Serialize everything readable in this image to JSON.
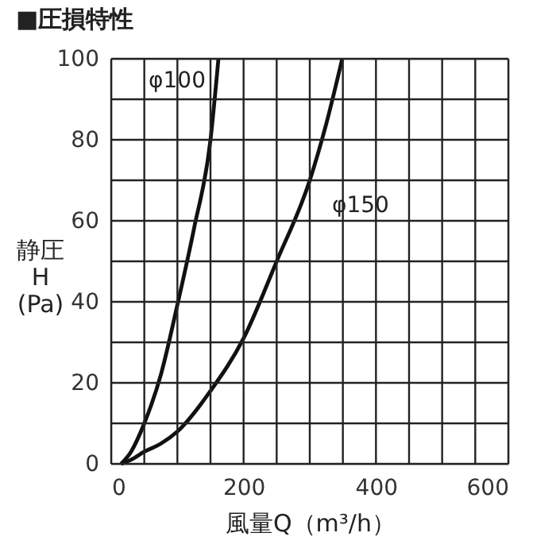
{
  "chart_data": {
    "type": "line",
    "title": "■圧損特性",
    "xlabel": "風量Q（m³/h）",
    "ylabel": "静圧\nH\n(Pa)",
    "xlim": [
      0,
      600
    ],
    "ylim": [
      0,
      100
    ],
    "xticks": [
      0,
      {
        "value": 50,
        "label": null
      },
      {
        "value": 100,
        "label": null
      },
      {
        "value": 150,
        "label": null
      },
      200,
      {
        "value": 250,
        "label": null
      },
      {
        "value": 300,
        "label": null
      },
      {
        "value": 350,
        "label": null
      },
      400,
      {
        "value": 450,
        "label": null
      },
      {
        "value": 500,
        "label": null
      },
      {
        "value": 550,
        "label": null
      },
      600
    ],
    "yticks": [
      0,
      {
        "value": 10,
        "label": null
      },
      20,
      {
        "value": 30,
        "label": null
      },
      40,
      {
        "value": 50,
        "label": null
      },
      60,
      {
        "value": 70,
        "label": null
      },
      80,
      {
        "value": 90,
        "label": null
      },
      100
    ],
    "grid": true,
    "legend": false,
    "marker": "none",
    "line_style": "solid",
    "series": [
      {
        "name": "φ100",
        "color": "#111111",
        "x": [
          15,
          30,
          50,
          75,
          101,
          125,
          150,
          162
        ],
        "values": [
          0,
          3,
          10,
          22,
          40,
          58,
          80,
          100
        ]
      },
      {
        "name": "φ150",
        "color": "#111111",
        "x": [
          15,
          30,
          50,
          75,
          100,
          150,
          200,
          250,
          300,
          325,
          349
        ],
        "values": [
          0,
          1,
          3,
          5,
          8,
          18,
          31,
          50,
          70,
          84,
          100
        ]
      }
    ]
  }
}
